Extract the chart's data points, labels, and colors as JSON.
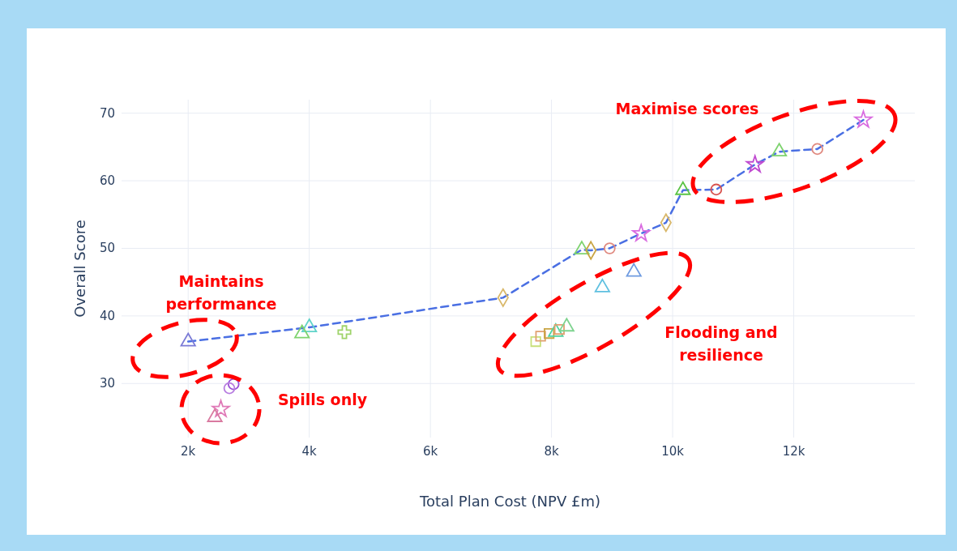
{
  "chart_data": {
    "type": "scatter",
    "xlabel": "Total Plan Cost (NPV £m)",
    "ylabel": "Overall Score",
    "xlim": [
      900,
      14000
    ],
    "ylim": [
      22,
      72
    ],
    "xticks": [
      {
        "value": 2000,
        "label": "2k"
      },
      {
        "value": 4000,
        "label": "4k"
      },
      {
        "value": 6000,
        "label": "6k"
      },
      {
        "value": 8000,
        "label": "8k"
      },
      {
        "value": 10000,
        "label": "10k"
      },
      {
        "value": 12000,
        "label": "12k"
      }
    ],
    "yticks": [
      30,
      40,
      50,
      60,
      70
    ],
    "grid": true,
    "series": [
      {
        "type": "line",
        "color": "#4a6fe3",
        "line_style": "dashed",
        "marker": "none",
        "x": [
          2000,
          4000,
          7200,
          8500,
          8650,
          8960,
          9480,
          9890,
          10170,
          10720,
          11360,
          11760,
          12390,
          13150
        ],
        "values": [
          36.2,
          38.3,
          42.7,
          49.8,
          49.7,
          50.0,
          52.2,
          53.8,
          58.6,
          58.7,
          62.4,
          64.3,
          64.7,
          69.0
        ]
      },
      {
        "color": "#7b7bd6",
        "marker": "triangle",
        "x": [
          2000
        ],
        "values": [
          36.2
        ]
      },
      {
        "color": "#5fd3c9",
        "marker": "triangle",
        "x": [
          4000
        ],
        "values": [
          38.3
        ]
      },
      {
        "color": "#d9b86a",
        "marker": "diamond",
        "x": [
          7200
        ],
        "values": [
          42.7
        ]
      },
      {
        "color": "#7ed36f",
        "marker": "triangle",
        "x": [
          8500
        ],
        "values": [
          49.8
        ]
      },
      {
        "color": "#c9a544",
        "marker": "diamond",
        "x": [
          8650
        ],
        "values": [
          49.7
        ]
      },
      {
        "color": "#e08a80",
        "marker": "circle",
        "x": [
          8960
        ],
        "values": [
          50.0
        ]
      },
      {
        "color": "#d96be0",
        "marker": "star",
        "x": [
          9480
        ],
        "values": [
          52.2
        ]
      },
      {
        "color": "#d9b86a",
        "marker": "diamond",
        "x": [
          9890
        ],
        "values": [
          53.8
        ]
      },
      {
        "color": "#5ac445",
        "marker": "triangle",
        "x": [
          10170
        ],
        "values": [
          58.6
        ]
      },
      {
        "color": "#d9534f",
        "marker": "circle",
        "x": [
          10720
        ],
        "values": [
          58.7
        ]
      },
      {
        "color": "#c04ad0",
        "marker": "star",
        "x": [
          11360
        ],
        "values": [
          62.4
        ]
      },
      {
        "color": "#7ed36f",
        "marker": "triangle",
        "x": [
          11760
        ],
        "values": [
          64.3
        ]
      },
      {
        "color": "#e08a80",
        "marker": "circle",
        "x": [
          12390
        ],
        "values": [
          64.7
        ]
      },
      {
        "color": "#d96be0",
        "marker": "star",
        "x": [
          13150
        ],
        "values": [
          69.0
        ]
      },
      {
        "color": "#7ed36f",
        "marker": "triangle",
        "x": [
          3880
        ],
        "values": [
          37.4
        ]
      },
      {
        "color": "#9ed36a",
        "marker": "cross",
        "x": [
          4580
        ],
        "values": [
          37.6
        ]
      },
      {
        "color": "#9b4fd6",
        "marker": "circle",
        "x": [
          2750
        ],
        "values": [
          29.9
        ]
      },
      {
        "color": "#b77de0",
        "marker": "circle",
        "x": [
          2680
        ],
        "values": [
          29.3
        ]
      },
      {
        "color": "#e07ab8",
        "marker": "star",
        "x": [
          2540
        ],
        "values": [
          26.2
        ]
      },
      {
        "color": "#d97aa0",
        "marker": "triangle",
        "x": [
          2440
        ],
        "values": [
          25.0
        ]
      },
      {
        "color": "#c8e07a",
        "marker": "square",
        "x": [
          7740
        ],
        "values": [
          36.2
        ]
      },
      {
        "color": "#e0a070",
        "marker": "square",
        "x": [
          7820
        ],
        "values": [
          37.0
        ]
      },
      {
        "color": "#c9a544",
        "marker": "square",
        "x": [
          7960
        ],
        "values": [
          37.4
        ]
      },
      {
        "color": "#4fd3a0",
        "marker": "triangle",
        "x": [
          8070
        ],
        "values": [
          37.6
        ]
      },
      {
        "color": "#e0a070",
        "marker": "square",
        "x": [
          8130
        ],
        "values": [
          38.0
        ]
      },
      {
        "color": "#7ed38f",
        "marker": "triangle",
        "x": [
          8250
        ],
        "values": [
          38.4
        ]
      },
      {
        "color": "#5fc0e0",
        "marker": "triangle",
        "x": [
          8840
        ],
        "values": [
          44.2
        ]
      },
      {
        "color": "#6f9be0",
        "marker": "triangle",
        "x": [
          9360
        ],
        "values": [
          46.5
        ]
      }
    ],
    "annotations": [
      "Maximise scores",
      "Maintains performance",
      "Flooding and resilience",
      "Spills only"
    ]
  }
}
